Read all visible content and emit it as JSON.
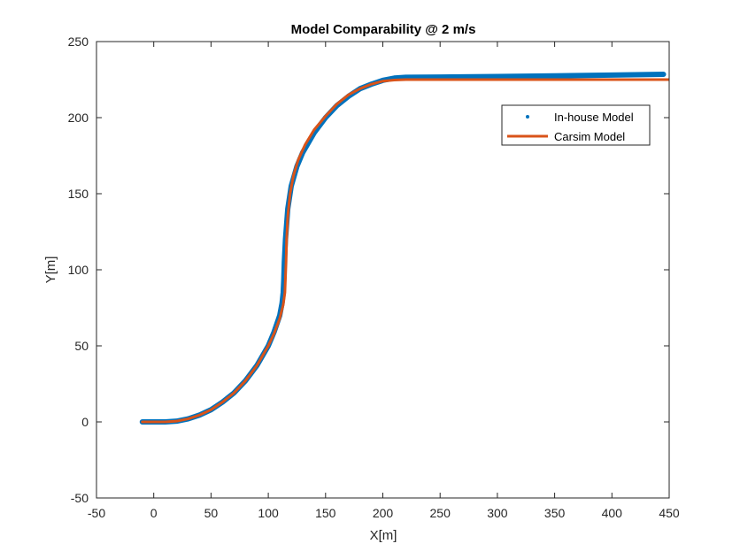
{
  "chart_data": {
    "type": "line",
    "title": "Model Comparability @ 2 m/s",
    "xlabel": "X[m]",
    "ylabel": "Y[m]",
    "xlim": [
      -50,
      450
    ],
    "ylim": [
      -50,
      250
    ],
    "xticks": [
      -50,
      0,
      50,
      100,
      150,
      200,
      250,
      300,
      350,
      400,
      450
    ],
    "yticks": [
      -50,
      0,
      50,
      100,
      150,
      200,
      250
    ],
    "grid": false,
    "legend_position": "upper-right inside",
    "series": [
      {
        "name": "In-house Model",
        "style": "dotted markers",
        "color": "#0072BD",
        "x": [
          -10,
          0,
          10,
          20,
          30,
          40,
          50,
          60,
          70,
          80,
          90,
          100,
          105,
          110,
          112,
          113,
          113.5,
          114,
          115,
          117,
          120,
          125,
          130,
          140,
          150,
          160,
          170,
          180,
          190,
          200,
          210,
          220,
          250,
          300,
          350,
          400,
          445
        ],
        "y": [
          0,
          0,
          0,
          0.5,
          2,
          4.5,
          8,
          13,
          19,
          27,
          37,
          50,
          59,
          70,
          78,
          85,
          93,
          105,
          120,
          140,
          155,
          168,
          177,
          190,
          200,
          208,
          214,
          219,
          222,
          224.5,
          226,
          226.5,
          226.7,
          227,
          227.5,
          228,
          228.5
        ]
      },
      {
        "name": "Carsim Model",
        "style": "solid line",
        "color": "#D95319",
        "x": [
          -10,
          0,
          10,
          20,
          30,
          40,
          50,
          60,
          70,
          80,
          90,
          100,
          105,
          110,
          113,
          114.5,
          115,
          115.5,
          116,
          117,
          119,
          122,
          126,
          132,
          140,
          150,
          160,
          170,
          180,
          190,
          200,
          210,
          220,
          250,
          300,
          350,
          400,
          450
        ],
        "y": [
          0,
          0,
          0,
          0.5,
          2,
          4.5,
          8,
          13,
          19,
          27,
          37,
          50,
          58,
          68,
          77,
          85,
          95,
          105,
          120,
          135,
          150,
          162,
          172,
          182,
          192,
          201,
          209,
          215,
          219,
          222,
          224,
          224.7,
          225,
          225,
          225,
          225,
          225,
          225
        ]
      }
    ]
  }
}
